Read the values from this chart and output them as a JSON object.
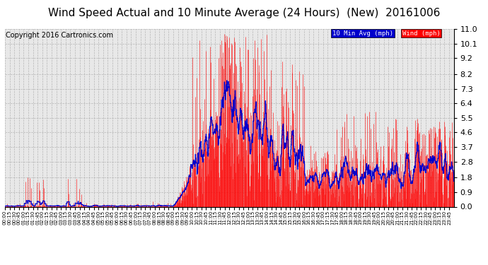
{
  "title": "Wind Speed Actual and 10 Minute Average (24 Hours)  (New)  20161006",
  "copyright": "Copyright 2016 Cartronics.com",
  "legend_blue_label": "10 Min Avg (mph)",
  "legend_red_label": "Wind (mph)",
  "yticks": [
    0.0,
    0.9,
    1.8,
    2.8,
    3.7,
    4.6,
    5.5,
    6.4,
    7.3,
    8.2,
    9.2,
    10.1,
    11.0
  ],
  "ymin": 0.0,
  "ymax": 11.0,
  "bg_color": "#ffffff",
  "plot_bg_color": "#e8e8e8",
  "grid_color": "#aaaaaa",
  "title_fontsize": 11,
  "copyright_fontsize": 7,
  "bar_color": "#ff0000",
  "avg_color": "#0000cc",
  "legend_blue_bg": "#0000cc",
  "legend_red_bg": "#ff0000"
}
